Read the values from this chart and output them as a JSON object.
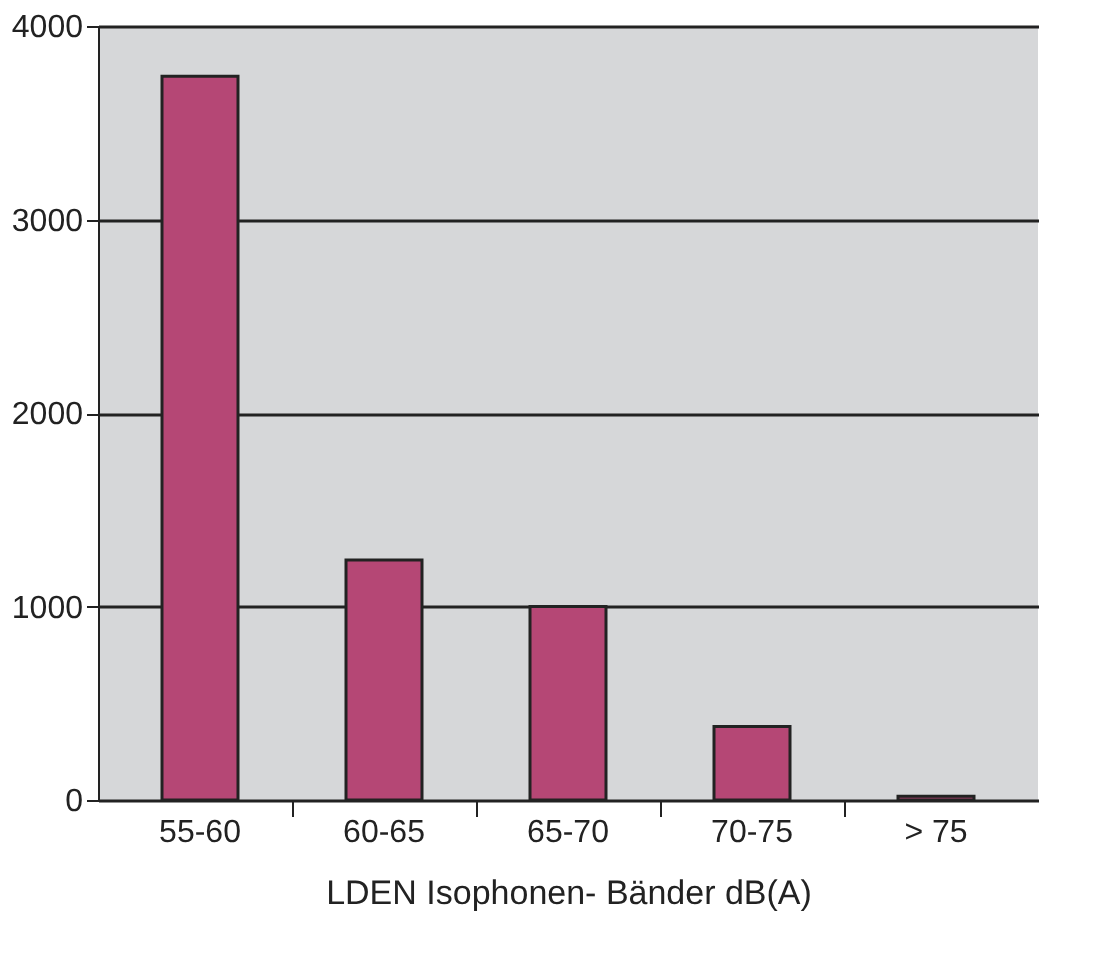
{
  "chart_data": {
    "type": "bar",
    "xlabel": "LDEN Isophonen- Bänder dB(A)",
    "categories": [
      "55-60",
      "60-65",
      "65-70",
      "70-75",
      "> 75"
    ],
    "values": [
      3740,
      1240,
      1000,
      380,
      20
    ],
    "color": "#b54775",
    "ylim": [
      0,
      4000
    ],
    "yticks": [
      0,
      1000,
      2000,
      3000,
      4000
    ],
    "grid": "y"
  }
}
